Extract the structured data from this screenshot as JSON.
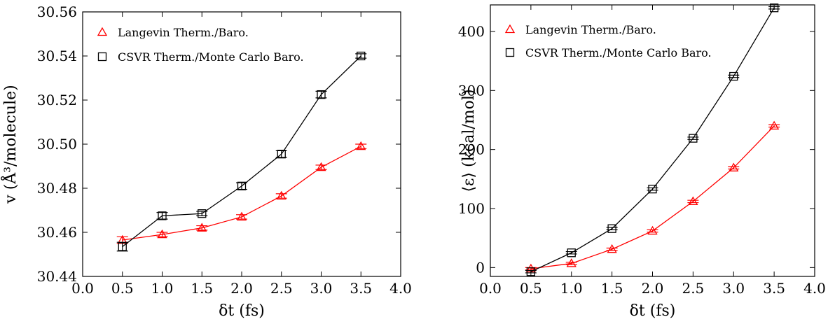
{
  "chart_data": [
    {
      "type": "line",
      "xlabel": "δt (fs)",
      "ylabel": "v (Å³/molecule)",
      "xlim": [
        0.0,
        4.0
      ],
      "ylim": [
        30.44,
        30.56
      ],
      "xticks": [
        "0.0",
        "0.5",
        "1.0",
        "1.5",
        "2.0",
        "2.5",
        "3.0",
        "3.5",
        "4.0"
      ],
      "yticks": [
        "30.44",
        "30.46",
        "30.48",
        "30.50",
        "30.52",
        "30.54",
        "30.56"
      ],
      "legend_position": "top-left",
      "series": [
        {
          "name": "Langevin Therm./Baro.",
          "color": "#ff0000",
          "marker": "triangle",
          "x": [
            0.5,
            1.0,
            1.5,
            2.0,
            2.5,
            3.0,
            3.5
          ],
          "y": [
            30.4565,
            30.459,
            30.462,
            30.467,
            30.4765,
            30.4895,
            30.499
          ],
          "err": [
            0.0015,
            0.001,
            0.001,
            0.001,
            0.001,
            0.001,
            0.001
          ]
        },
        {
          "name": "CSVR Therm./Monte Carlo Baro.",
          "color": "#000000",
          "marker": "square",
          "x": [
            0.5,
            1.0,
            1.5,
            2.0,
            2.5,
            3.0,
            3.5
          ],
          "y": [
            30.4535,
            30.4675,
            30.4685,
            30.481,
            30.4955,
            30.5225,
            30.54
          ],
          "err": [
            0.002,
            0.0015,
            0.001,
            0.0015,
            0.0015,
            0.0015,
            0.001
          ]
        }
      ]
    },
    {
      "type": "line",
      "xlabel": "δt (fs)",
      "ylabel": "⟨ε⟩ (kcal/mol)",
      "xlim": [
        0.0,
        4.0
      ],
      "ylim": [
        -15,
        445
      ],
      "xticks": [
        "0.0",
        "0.5",
        "1.0",
        "1.5",
        "2.0",
        "2.5",
        "3.0",
        "3.5",
        "4.0"
      ],
      "yticks": [
        "0",
        "100",
        "200",
        "300",
        "400"
      ],
      "legend_position": "top-left",
      "series": [
        {
          "name": "Langevin Therm./Baro.",
          "color": "#ff0000",
          "marker": "triangle",
          "x": [
            0.5,
            1.0,
            1.5,
            2.0,
            2.5,
            3.0,
            3.5
          ],
          "y": [
            -2,
            7,
            31,
            62,
            112,
            169,
            240
          ],
          "err": [
            2,
            2,
            2,
            2,
            2,
            2,
            2
          ]
        },
        {
          "name": "CSVR Therm./Monte Carlo Baro.",
          "color": "#000000",
          "marker": "square",
          "x": [
            0.5,
            1.0,
            1.5,
            2.0,
            2.5,
            3.0,
            3.5
          ],
          "y": [
            -7,
            25,
            66,
            133,
            219,
            324,
            440
          ],
          "err": [
            2,
            2,
            2,
            2,
            2,
            2,
            2
          ]
        }
      ]
    }
  ]
}
